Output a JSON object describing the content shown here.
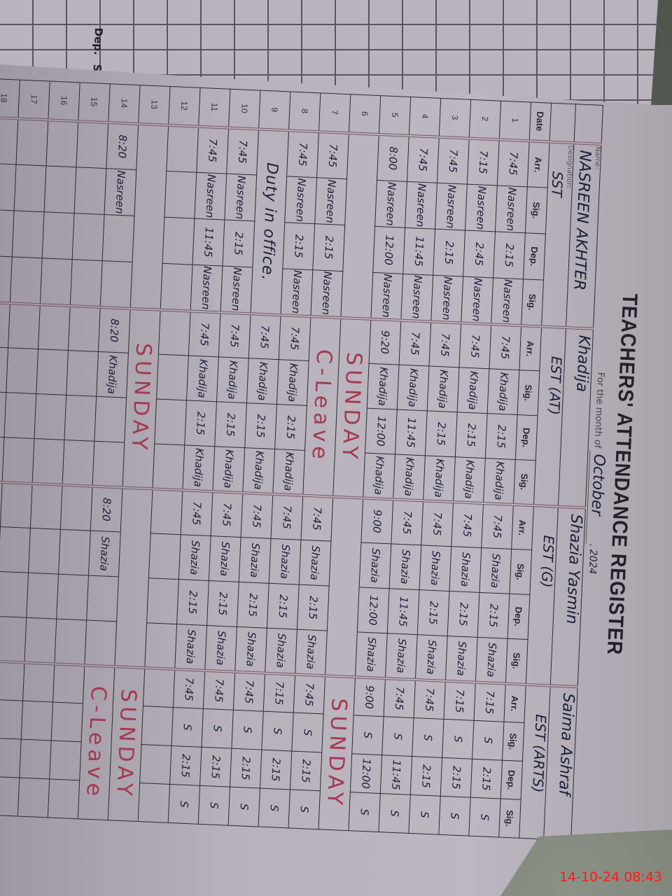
{
  "previous_page": {
    "headers": [
      "Dep.",
      "Sig."
    ]
  },
  "register": {
    "title": "TEACHERS' ATTENDANCE REGISTER",
    "month_label": "For the month of",
    "month": "October",
    "year": "2024",
    "name_label": "Name:",
    "designation_label": "Designation:",
    "date_header": "Date",
    "column_headers": [
      "Arr.",
      "Sig.",
      "Dep.",
      "Sig."
    ],
    "teachers": [
      {
        "name": "NASREEN AKHTER",
        "designation": "SST"
      },
      {
        "name": "Khadija",
        "designation": "EST (AT)"
      },
      {
        "name": "Shazia Yasmin",
        "designation": "EST (G)"
      },
      {
        "name": "Saima Ashraf",
        "designation": "EST (ARTS)"
      }
    ],
    "rows": [
      {
        "date": "1",
        "entries": [
          [
            "7:45",
            "Nasreen",
            "2:15",
            "Nasreen"
          ],
          [
            "7:45",
            "Khadija",
            "2:15",
            "Khadija"
          ],
          [
            "7:45",
            "Shazia",
            "2:15",
            "Shazia"
          ],
          [
            "7:15",
            "S",
            "2:15",
            "S"
          ]
        ]
      },
      {
        "date": "2",
        "entries": [
          [
            "7:15",
            "Nasreen",
            "2:45",
            "Nasreen"
          ],
          [
            "7:45",
            "Khadija",
            "2:15",
            "Khadija"
          ],
          [
            "7:45",
            "Shazia",
            "2:15",
            "Shazia"
          ],
          [
            "7:15",
            "S",
            "2:15",
            "S"
          ]
        ]
      },
      {
        "date": "3",
        "entries": [
          [
            "7:45",
            "Nasreen",
            "2:15",
            "Nasreen"
          ],
          [
            "7:45",
            "Khadija",
            "2:15",
            "Khadija"
          ],
          [
            "7:45",
            "Shazia",
            "2:15",
            "Shazia"
          ],
          [
            "7:45",
            "S",
            "2:15",
            "S"
          ]
        ]
      },
      {
        "date": "4",
        "entries": [
          [
            "7:45",
            "Nasreen",
            "11:45",
            "Nasreen"
          ],
          [
            "7:45",
            "Khadija",
            "11:45",
            "Khadija"
          ],
          [
            "7:45",
            "Shazia",
            "11:45",
            "Shazia"
          ],
          [
            "7:45",
            "S",
            "11:45",
            "S"
          ]
        ]
      },
      {
        "date": "5",
        "entries": [
          [
            "8:00",
            "Nasreen",
            "12:00",
            "Nasreen"
          ],
          [
            "9:20",
            "Khadija",
            "12:00",
            "Khadija"
          ],
          [
            "9:00",
            "Shazia",
            "12:00",
            "Shazia"
          ],
          [
            "9:00",
            "S",
            "12:00",
            "S"
          ]
        ]
      },
      {
        "date": "6",
        "entries": [
          {
            "note": ""
          },
          {
            "note": "SUNDAY"
          },
          {
            "note": ""
          },
          {
            "note": "SUNDAY"
          }
        ]
      },
      {
        "date": "7",
        "entries": [
          [
            "7:45",
            "Nasreen",
            "2:15",
            "Nasreen"
          ],
          {
            "note": "C-Leave"
          },
          [
            "7:45",
            "Shazia",
            "2:15",
            "Shazia"
          ],
          [
            "7:45",
            "S",
            "2:15",
            "S"
          ]
        ]
      },
      {
        "date": "8",
        "entries": [
          [
            "7:45",
            "Nasreen",
            "2:15",
            "Nasreen"
          ],
          [
            "7:45",
            "Khadija",
            "2:15",
            "Khadija"
          ],
          [
            "7:45",
            "Shazia",
            "2:15",
            "Shazia"
          ],
          [
            "7:15",
            "S",
            "2:15",
            "S"
          ]
        ]
      },
      {
        "date": "9",
        "entries": [
          {
            "note": "Duty in office.",
            "dark": true
          },
          [
            "7:45",
            "Khadija",
            "2:15",
            "Khadija"
          ],
          [
            "7:45",
            "Shazia",
            "2:15",
            "Shazia"
          ],
          [
            "7:45",
            "S",
            "2:15",
            "S"
          ]
        ]
      },
      {
        "date": "10",
        "entries": [
          [
            "7:45",
            "Nasreen",
            "2:15",
            "Nasreen"
          ],
          [
            "7:45",
            "Khadija",
            "2:15",
            "Khadija"
          ],
          [
            "7:45",
            "Shazia",
            "2:15",
            "Shazia"
          ],
          [
            "7:45",
            "S",
            "2:15",
            "S"
          ]
        ]
      },
      {
        "date": "11",
        "entries": [
          [
            "7:45",
            "Nasreen",
            "11:45",
            "Nasreen"
          ],
          [
            "7:45",
            "Khadija",
            "2:15",
            "Khadija"
          ],
          [
            "7:45",
            "Shazia",
            "2:15",
            "Shazia"
          ],
          [
            "7:45",
            "S",
            "2:15",
            "S"
          ]
        ]
      },
      {
        "date": "12",
        "entries": [
          [
            "",
            "",
            "",
            ""
          ],
          [
            "",
            "",
            "",
            ""
          ],
          [
            "",
            "",
            "",
            ""
          ],
          [
            "",
            "",
            "",
            ""
          ]
        ]
      },
      {
        "date": "13",
        "entries": [
          {
            "note": ""
          },
          {
            "note": "SUNDAY"
          },
          {
            "note": ""
          },
          {
            "note": "SUNDAY"
          }
        ]
      },
      {
        "date": "14",
        "entries": [
          [
            "8:20",
            "Nasreen",
            "",
            ""
          ],
          [
            "8:20",
            "Khadija",
            "",
            ""
          ],
          [
            "8:20",
            "Shazia",
            "",
            ""
          ],
          {
            "note": "C-Leave"
          }
        ]
      },
      {
        "date": "15",
        "entries": [
          [
            "",
            "",
            "",
            ""
          ],
          [
            "",
            "",
            "",
            ""
          ],
          [
            "",
            "",
            "",
            ""
          ],
          [
            "",
            "",
            "",
            ""
          ]
        ]
      },
      {
        "date": "16",
        "entries": [
          [
            "",
            "",
            "",
            ""
          ],
          [
            "",
            "",
            "",
            ""
          ],
          [
            "",
            "",
            "",
            ""
          ],
          [
            "",
            "",
            "",
            ""
          ]
        ]
      },
      {
        "date": "17",
        "entries": [
          [
            "",
            "",
            "",
            ""
          ],
          [
            "",
            "",
            "",
            ""
          ],
          [
            "",
            "",
            "",
            ""
          ],
          [
            "",
            "",
            "",
            ""
          ]
        ]
      },
      {
        "date": "18",
        "entries": [
          [
            "",
            "",
            "",
            ""
          ],
          [
            "",
            "",
            "",
            ""
          ],
          [
            "",
            "",
            "",
            ""
          ],
          [
            "",
            "",
            "",
            ""
          ]
        ]
      }
    ]
  },
  "camera_timestamp": "14-10-24  08:43",
  "colors": {
    "ink": "#1d1f3a",
    "red_ink": "#a33a4e",
    "paper": "#bdb7c1",
    "timestamp": "#ff1a1a"
  }
}
